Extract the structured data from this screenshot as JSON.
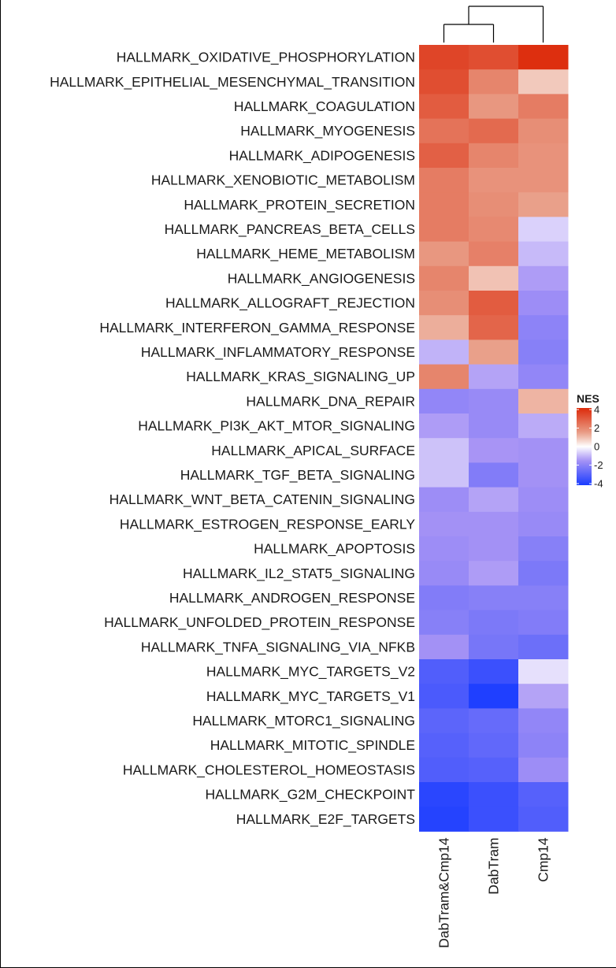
{
  "chart_data": {
    "type": "heatmap",
    "columns": [
      "DabTram&Cmp14",
      "DabTram",
      "Cmp14"
    ],
    "rows": [
      "HALLMARK_OXIDATIVE_PHOSPHORYLATION",
      "HALLMARK_EPITHELIAL_MESENCHYMAL_TRANSITION",
      "HALLMARK_COAGULATION",
      "HALLMARK_MYOGENESIS",
      "HALLMARK_ADIPOGENESIS",
      "HALLMARK_XENOBIOTIC_METABOLISM",
      "HALLMARK_PROTEIN_SECRETION",
      "HALLMARK_PANCREAS_BETA_CELLS",
      "HALLMARK_HEME_METABOLISM",
      "HALLMARK_ANGIOGENESIS",
      "HALLMARK_ALLOGRAFT_REJECTION",
      "HALLMARK_INTERFERON_GAMMA_RESPONSE",
      "HALLMARK_INFLAMMATORY_RESPONSE",
      "HALLMARK_KRAS_SIGNALING_UP",
      "HALLMARK_DNA_REPAIR",
      "HALLMARK_PI3K_AKT_MTOR_SIGNALING",
      "HALLMARK_APICAL_SURFACE",
      "HALLMARK_TGF_BETA_SIGNALING",
      "HALLMARK_WNT_BETA_CATENIN_SIGNALING",
      "HALLMARK_ESTROGEN_RESPONSE_EARLY",
      "HALLMARK_APOPTOSIS",
      "HALLMARK_IL2_STAT5_SIGNALING",
      "HALLMARK_ANDROGEN_RESPONSE",
      "HALLMARK_UNFOLDED_PROTEIN_RESPONSE",
      "HALLMARK_TNFA_SIGNALING_VIA_NFKB",
      "HALLMARK_MYC_TARGETS_V2",
      "HALLMARK_MYC_TARGETS_V1",
      "HALLMARK_MTORC1_SIGNALING",
      "HALLMARK_MITOTIC_SPINDLE",
      "HALLMARK_CHOLESTEROL_HOMEOSTASIS",
      "HALLMARK_G2M_CHECKPOINT",
      "HALLMARK_E2F_TARGETS"
    ],
    "values": [
      [
        3.4,
        3.2,
        3.9
      ],
      [
        3.2,
        2.0,
        0.8
      ],
      [
        2.9,
        1.6,
        2.2
      ],
      [
        2.4,
        2.6,
        1.8
      ],
      [
        2.8,
        2.0,
        1.7
      ],
      [
        2.2,
        1.7,
        1.7
      ],
      [
        2.2,
        1.8,
        1.4
      ],
      [
        2.2,
        1.9,
        -0.6
      ],
      [
        1.6,
        2.1,
        -0.9
      ],
      [
        2.0,
        0.9,
        -1.3
      ],
      [
        1.8,
        2.9,
        -1.6
      ],
      [
        1.2,
        2.7,
        -1.9
      ],
      [
        -1.0,
        1.4,
        -2.0
      ],
      [
        2.0,
        -1.2,
        -1.8
      ],
      [
        -1.8,
        -1.7,
        1.1
      ],
      [
        -1.3,
        -1.7,
        -1.1
      ],
      [
        -0.8,
        -1.4,
        -1.5
      ],
      [
        -0.8,
        -2.1,
        -1.5
      ],
      [
        -1.6,
        -1.2,
        -1.6
      ],
      [
        -1.5,
        -1.5,
        -1.7
      ],
      [
        -1.6,
        -1.5,
        -2.0
      ],
      [
        -1.7,
        -1.3,
        -2.2
      ],
      [
        -2.1,
        -2.0,
        -2.0
      ],
      [
        -2.0,
        -2.2,
        -2.1
      ],
      [
        -1.5,
        -2.3,
        -2.5
      ],
      [
        -3.0,
        -3.4,
        -0.4
      ],
      [
        -3.1,
        -3.9,
        -1.2
      ],
      [
        -2.8,
        -2.6,
        -1.8
      ],
      [
        -2.9,
        -2.7,
        -1.9
      ],
      [
        -3.0,
        -2.9,
        -1.6
      ],
      [
        -3.7,
        -3.4,
        -2.9
      ],
      [
        -3.8,
        -3.4,
        -3.0
      ]
    ],
    "column_dendrogram": [
      [
        "DabTram&Cmp14",
        "DabTram"
      ],
      "Cmp14"
    ],
    "legend": {
      "title": "NES",
      "ticks": [
        4,
        2,
        0,
        -2,
        -4
      ],
      "tick_labels": [
        "4",
        "2",
        "0",
        "-2",
        "-4"
      ],
      "range": [
        -4,
        4
      ],
      "position": "right"
    },
    "colors": {
      "low": "#1a3cff",
      "low_mid": "#a894f5",
      "mid": "#ffffff",
      "high_mid": "#e9a08a",
      "high": "#dc2a0a"
    }
  }
}
